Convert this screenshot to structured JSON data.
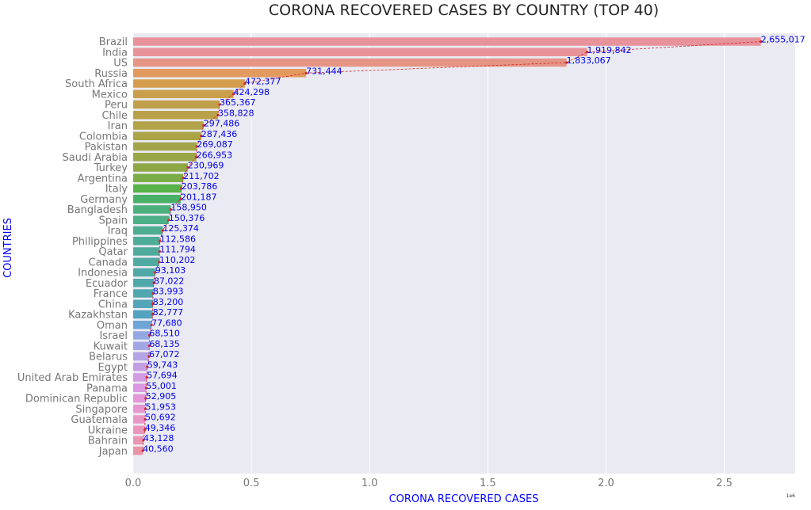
{
  "chart_data": {
    "type": "bar",
    "orientation": "horizontal",
    "title": "CORONA RECOVERED CASES BY COUNTRY (TOP 40)",
    "xlabel": "CORONA RECOVERED CASES",
    "ylabel": "COUNTRIES",
    "x_scale_label": "1e6",
    "xlim": [
      0,
      2800000
    ],
    "xticks": [
      0,
      500000,
      1000000,
      1500000,
      2000000,
      2500000
    ],
    "xtick_labels": [
      "0.0",
      "0.5",
      "1.0",
      "1.5",
      "2.0",
      "2.5"
    ],
    "grid": true,
    "trend_line": "dashed red line connecting bar ends",
    "categories": [
      "Brazil",
      "India",
      "US",
      "Russia",
      "South Africa",
      "Mexico",
      "Peru",
      "Chile",
      "Iran",
      "Colombia",
      "Pakistan",
      "Saudi Arabia",
      "Turkey",
      "Argentina",
      "Italy",
      "Germany",
      "Bangladesh",
      "Spain",
      "Iraq",
      "Philippines",
      "Qatar",
      "Canada",
      "Indonesia",
      "Ecuador",
      "France",
      "China",
      "Kazakhstan",
      "Oman",
      "Israel",
      "Kuwait",
      "Belarus",
      "Egypt",
      "United Arab Emirates",
      "Panama",
      "Dominican Republic",
      "Singapore",
      "Guatemala",
      "Ukraine",
      "Bahrain",
      "Japan"
    ],
    "values": [
      2655017,
      1919842,
      1833067,
      731444,
      472377,
      424298,
      365367,
      358828,
      297486,
      287436,
      269087,
      266953,
      230969,
      211702,
      203786,
      201187,
      158950,
      150376,
      125374,
      112586,
      111794,
      110202,
      93103,
      87022,
      83993,
      83200,
      82777,
      77680,
      68510,
      68135,
      67072,
      59743,
      57694,
      55001,
      52905,
      51953,
      50692,
      49346,
      43128,
      40560
    ],
    "value_labels": [
      "2,655,017",
      "1,919,842",
      "1,833,067",
      "731,444",
      "472,377",
      "424,298",
      "365,367",
      "358,828",
      "297,486",
      "287,436",
      "269,087",
      "266,953",
      "230,969",
      "211,702",
      "203,786",
      "201,187",
      "158,950",
      "150,376",
      "125,374",
      "112,586",
      "111,794",
      "110,202",
      "93,103",
      "87,022",
      "83,993",
      "83,200",
      "82,777",
      "77,680",
      "68,510",
      "68,135",
      "67,072",
      "59,743",
      "57,694",
      "55,001",
      "52,905",
      "51,953",
      "50,692",
      "49,346",
      "43,128",
      "40,560"
    ],
    "colors": [
      "#e8929b",
      "#e8939a",
      "#e69585",
      "#e39a5e",
      "#d49d4d",
      "#c99f4b",
      "#c0a04a",
      "#b9a149",
      "#b2a248",
      "#aaa447",
      "#a2a547",
      "#99a746",
      "#8fa846",
      "#7bad47",
      "#57b248",
      "#47b266",
      "#4ab07c",
      "#4caf88",
      "#4dad91",
      "#4eac97",
      "#4fab9c",
      "#4faaa1",
      "#50a9a6",
      "#50a8ab",
      "#51a7b0",
      "#52a5b7",
      "#53a3bf",
      "#6da5d7",
      "#93a8e1",
      "#a3a6e4",
      "#b4a3e5",
      "#c59fe4",
      "#d29be3",
      "#dc98e1",
      "#e497d9",
      "#e797d0",
      "#e997c6",
      "#ea96bc",
      "#ea95b2",
      "#e993a6"
    ],
    "background_color": "#eaeaf2",
    "label_color": "#0000ee",
    "trend_color": "#d62728"
  }
}
